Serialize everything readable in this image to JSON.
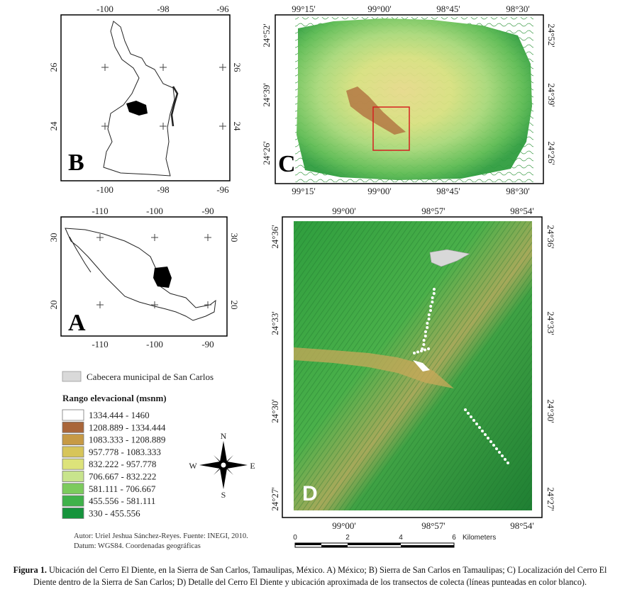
{
  "panels": {
    "B": {
      "letter": "B",
      "top_ticks": [
        "-100",
        "-98",
        "-96"
      ],
      "bottom_ticks": [
        "-100",
        "-98",
        "-96"
      ],
      "left_ticks": [
        "26",
        "24"
      ],
      "right_ticks": [
        "26",
        "24"
      ]
    },
    "A": {
      "letter": "A",
      "top_ticks": [
        "-110",
        "-100",
        "-90"
      ],
      "bottom_ticks": [
        "-110",
        "-100",
        "-90"
      ],
      "left_ticks": [
        "30",
        "20"
      ],
      "right_ticks": [
        "30",
        "20"
      ]
    },
    "C": {
      "letter": "C",
      "top_ticks": [
        "99°15'",
        "99°00'",
        "98°45'",
        "98°30'"
      ],
      "bottom_ticks": [
        "99°15'",
        "99°00'",
        "98°45'",
        "98°30'"
      ],
      "left_ticks": [
        "24°52'",
        "24°39'",
        "24°26'"
      ],
      "right_ticks": [
        "24°52'",
        "24°39'",
        "24°26'"
      ]
    },
    "D": {
      "letter": "D",
      "top_ticks": [
        "99°00'",
        "98°57'",
        "98°54'"
      ],
      "bottom_ticks": [
        "99°00'",
        "98°57'",
        "98°54'"
      ],
      "left_ticks": [
        "24°36'",
        "24°33'",
        "24°30'",
        "24°27'"
      ],
      "right_ticks": [
        "24°36'",
        "24°33'",
        "24°30'",
        "24°27'"
      ]
    }
  },
  "legend": {
    "municipal_label": "Cabecera municipal de San Carlos",
    "title": "Rango elevacional (msnm)",
    "items": [
      {
        "label": "1334.444 - 1460",
        "color": "#ffffff"
      },
      {
        "label": "1208.889 - 1334.444",
        "color": "#a9663a"
      },
      {
        "label": "1083.333 - 1208.889",
        "color": "#c79a45"
      },
      {
        "label": "957.778 - 1083.333",
        "color": "#d7c55a"
      },
      {
        "label": "832.222 - 957.778",
        "color": "#dde37a"
      },
      {
        "label": "706.667 - 832.222",
        "color": "#c8e48d"
      },
      {
        "label": "581.111 - 706.667",
        "color": "#7ccb5d"
      },
      {
        "label": "455.556 - 581.111",
        "color": "#3fb24a"
      },
      {
        "label": "330 - 455.556",
        "color": "#16943c"
      }
    ]
  },
  "compass": {
    "n": "N",
    "s": "S",
    "e": "E",
    "w": "W"
  },
  "scalebar": {
    "ticks": [
      "0",
      "2",
      "4",
      "6"
    ],
    "unit": "Kilometers"
  },
  "author": {
    "line1": "Autor: Uriel Jeshua Sánchez-Reyes. Fuente: INEGI, 2010.",
    "line2": "Datum: WGS84. Coordenadas geográficas"
  },
  "caption": {
    "label": "Figura 1.",
    "text": " Ubicación del Cerro El Diente, en la Sierra de San Carlos, Tamaulipas, México. A) México; B) Sierra de San Carlos en Tamaulipas; C) Localización del Cerro El Diente dentro de la Sierra de San Carlos; D) Detalle del Cerro El Diente y ubicación aproximada de los transectos de colecta (líneas punteadas en color blanco)."
  }
}
